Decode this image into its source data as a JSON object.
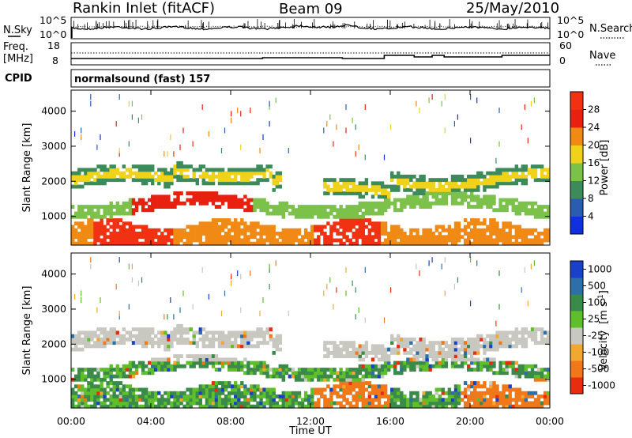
{
  "header": {
    "title": "Rankin Inlet (fitACF)",
    "beam": "Beam 09",
    "date": "25/May/2010"
  },
  "nsky_panel": {
    "left_label": "N.Sky",
    "right_label": "N.Search",
    "left_ticks": [
      "10^5",
      "10^0"
    ],
    "right_ticks": [
      "10^5",
      "10^0"
    ]
  },
  "freq_panel": {
    "left_label_1": "Freq.",
    "left_label_2": "[MHz]",
    "right_label": "Nave",
    "left_ticks": [
      "18",
      "8"
    ],
    "right_ticks": [
      "60",
      "0"
    ]
  },
  "cpid": {
    "label": "CPID",
    "text": "normalsound (fast) 157"
  },
  "chart_data": [
    {
      "type": "heatmap",
      "name": "power",
      "ylabel": "Slant Range [km]",
      "xlabel": "",
      "ylim": [
        180,
        4600
      ],
      "y_ticks": [
        "1000",
        "2000",
        "3000",
        "4000"
      ],
      "y_tick_values": [
        1000,
        2000,
        3000,
        4000
      ],
      "colorbar_label": "Power [dB]",
      "colorbar_ticks": [
        "4",
        "8",
        "12",
        "16",
        "20",
        "24",
        "28"
      ],
      "colorbar_colors": [
        "#1030e0",
        "#2a5cb0",
        "#3d8a5a",
        "#7cc24a",
        "#f0d21a",
        "#f08a14",
        "#e82010",
        "#f23012"
      ]
    },
    {
      "type": "heatmap",
      "name": "velocity",
      "ylabel": "Slant Range [km]",
      "xlabel": "Time UT",
      "ylim": [
        180,
        4600
      ],
      "y_ticks": [
        "1000",
        "2000",
        "3000",
        "4000"
      ],
      "y_tick_values": [
        1000,
        2000,
        3000,
        4000
      ],
      "x_ticks": [
        "00:00",
        "04:00",
        "08:00",
        "12:00",
        "16:00",
        "20:00",
        "00:00"
      ],
      "x_tick_hours": [
        0,
        4,
        8,
        12,
        16,
        20,
        24
      ],
      "colorbar_label_main": "Velocity",
      "colorbar_label_unit": "[m s",
      "colorbar_label_sup": "-1",
      "colorbar_label_close": "]",
      "colorbar_ticks": [
        "1000",
        "500",
        "100",
        "25",
        "-25",
        "-100",
        "-500",
        "-1000"
      ],
      "colorbar_colors": [
        "#1a3fc8",
        "#2d6fa8",
        "#3a8a4a",
        "#5fbf2a",
        "#c8c8c0",
        "#f0a830",
        "#f07818",
        "#e82c10"
      ]
    }
  ]
}
